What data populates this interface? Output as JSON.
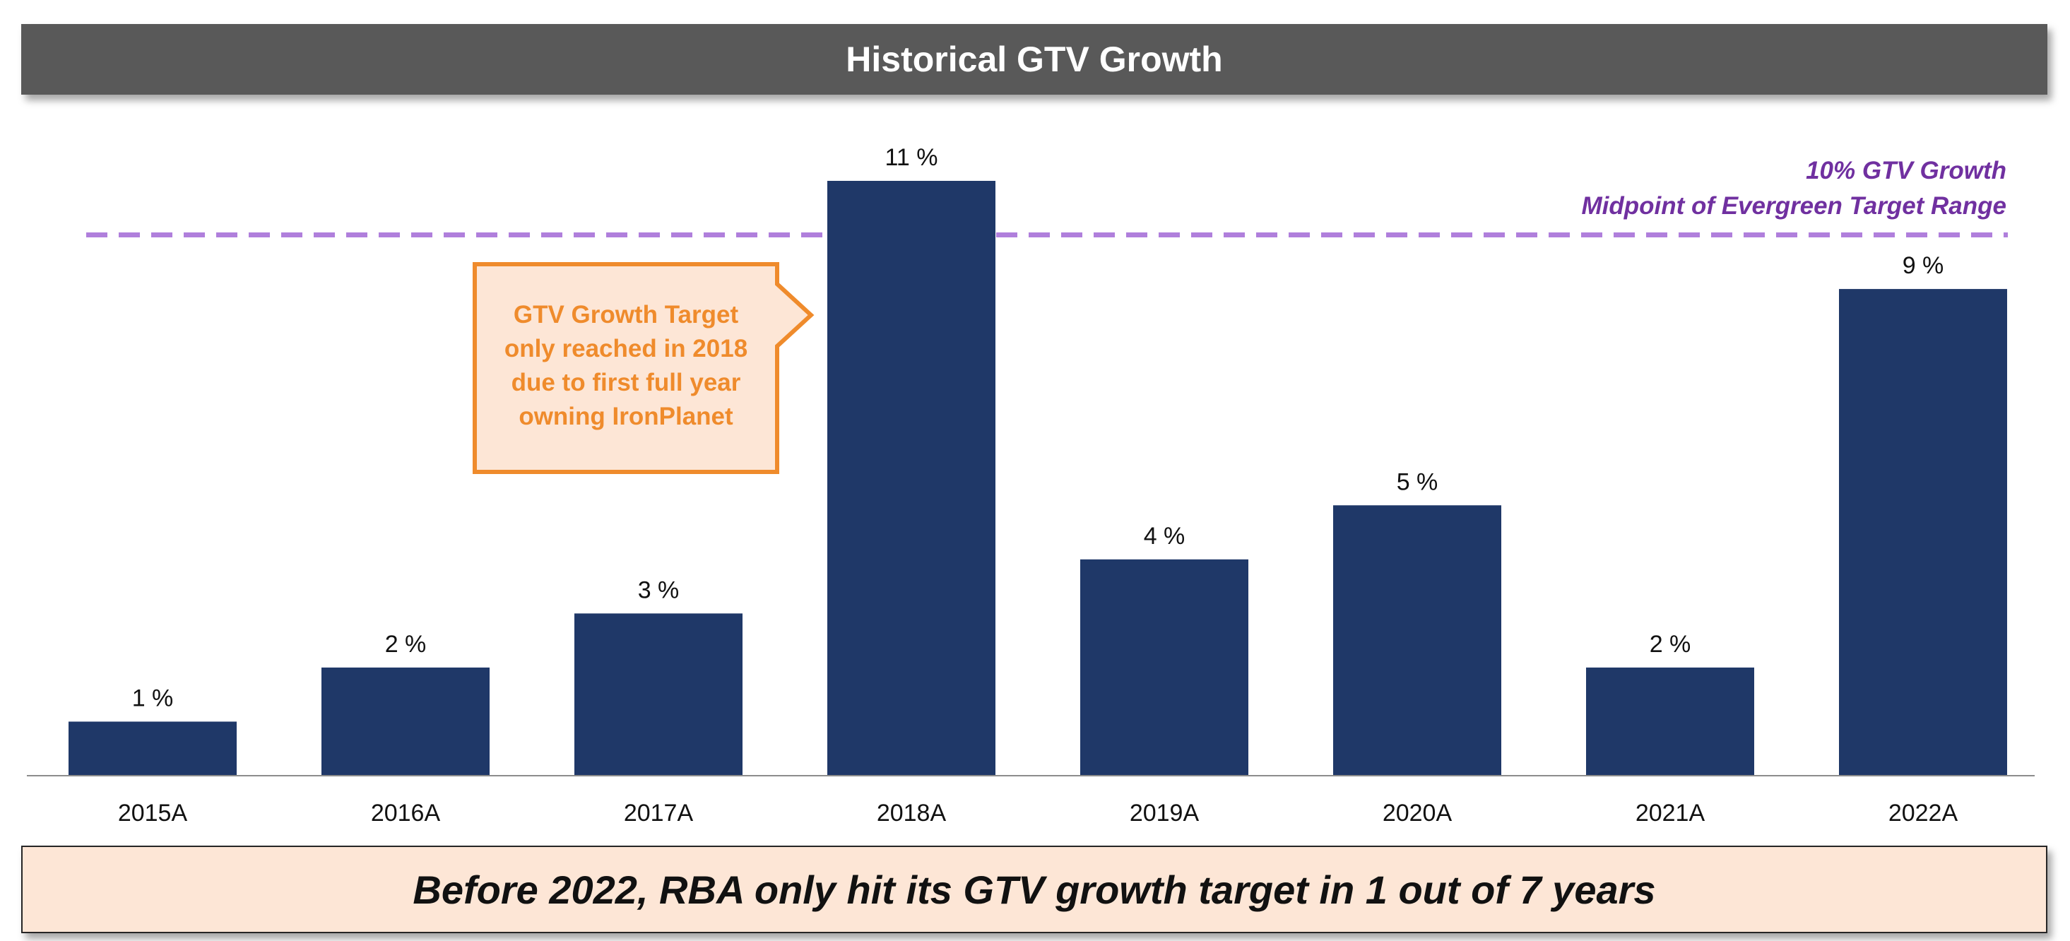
{
  "header": {
    "title": "Historical GTV Growth"
  },
  "chart_data": {
    "type": "bar",
    "title": "Historical GTV Growth",
    "categories": [
      "2015A",
      "2016A",
      "2017A",
      "2018A",
      "2019A",
      "2020A",
      "2021A",
      "2022A"
    ],
    "values": [
      1,
      2,
      3,
      11,
      4,
      5,
      2,
      9
    ],
    "data_labels": [
      "1 %",
      "2 %",
      "3 %",
      "11 %",
      "4 %",
      "5 %",
      "2 %",
      "9 %"
    ],
    "value_unit": "%",
    "ylim": [
      0,
      11
    ],
    "grid": false,
    "bar_color": "#1f3868",
    "reference_line": {
      "value": 10,
      "style": "dashed",
      "color": "#b07fdc",
      "label_line1": "10% GTV Growth",
      "label_line2": "Midpoint of Evergreen Target Range",
      "label_color": "#7030a0"
    },
    "annotation": {
      "lines": [
        "GTV Growth Target",
        "only reached in 2018",
        "due to first full year",
        "owning IronPlanet"
      ],
      "text_color": "#ef8b2c",
      "border_color": "#ef8b2c",
      "fill_color": "#fde6d6"
    }
  },
  "footer": {
    "text": "Before 2022, RBA only hit its GTV growth target in 1 out of 7 years"
  }
}
